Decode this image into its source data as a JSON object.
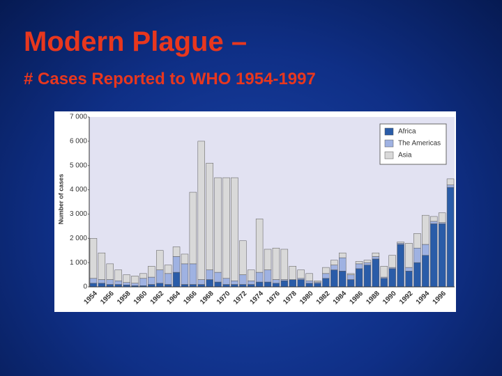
{
  "title": "Modern Plague –",
  "subtitle": "# Cases Reported to WHO 1954-1997",
  "chart_data": {
    "type": "stacked-bar",
    "y_label": "Number of cases",
    "categories": [
      "1954",
      null,
      "1956",
      null,
      "1958",
      null,
      "1960",
      null,
      "1962",
      null,
      "1964",
      null,
      "1966",
      null,
      "1968",
      null,
      "1970",
      null,
      "1972",
      null,
      "1974",
      null,
      "1976",
      null,
      "1978",
      null,
      "1980",
      null,
      "1982",
      null,
      "1984",
      null,
      "1986",
      null,
      "1988",
      null,
      "1990",
      null,
      "1992",
      null,
      "1994",
      null,
      "1996",
      null
    ],
    "series": [
      {
        "name": "Africa",
        "color": "#2a5ca8",
        "values": [
          150,
          150,
          100,
          100,
          80,
          50,
          50,
          100,
          150,
          100,
          600,
          100,
          100,
          100,
          300,
          200,
          100,
          100,
          100,
          100,
          200,
          200,
          150,
          250,
          300,
          300,
          150,
          150,
          350,
          700,
          650,
          300,
          750,
          900,
          1150,
          350,
          750,
          1750,
          650,
          1000,
          1300,
          2600,
          2600,
          4100
        ]
      },
      {
        "name": "The Americas",
        "color": "#9fb2e2",
        "values": [
          200,
          150,
          200,
          150,
          100,
          100,
          300,
          300,
          550,
          450,
          650,
          850,
          850,
          200,
          400,
          400,
          250,
          150,
          400,
          150,
          400,
          500,
          150,
          50,
          0,
          50,
          100,
          50,
          200,
          200,
          550,
          200,
          200,
          100,
          100,
          50,
          50,
          50,
          150,
          600,
          450,
          100,
          50,
          100
        ]
      },
      {
        "name": "Asia",
        "color": "#d9d9d9",
        "values": [
          1650,
          1100,
          650,
          450,
          320,
          300,
          200,
          450,
          800,
          350,
          400,
          400,
          2950,
          5700,
          4400,
          3900,
          4150,
          4250,
          1400,
          450,
          2200,
          850,
          1300,
          1250,
          550,
          350,
          300,
          50,
          250,
          200,
          200,
          50,
          100,
          100,
          150,
          450,
          500,
          50,
          1000,
          600,
          1200,
          200,
          400,
          250
        ]
      }
    ],
    "ylim": [
      0,
      7000
    ],
    "yticks": [
      0,
      {
        "value": 1000,
        "label": "1 000"
      },
      {
        "value": 2000,
        "label": "2 000"
      },
      {
        "value": 3000,
        "label": "3 000"
      },
      {
        "value": 4000,
        "label": "4 000"
      },
      {
        "value": 5000,
        "label": "5 000"
      },
      {
        "value": 6000,
        "label": "6 000"
      },
      {
        "value": 7000,
        "label": "7 000"
      }
    ],
    "legend": "top-right"
  }
}
